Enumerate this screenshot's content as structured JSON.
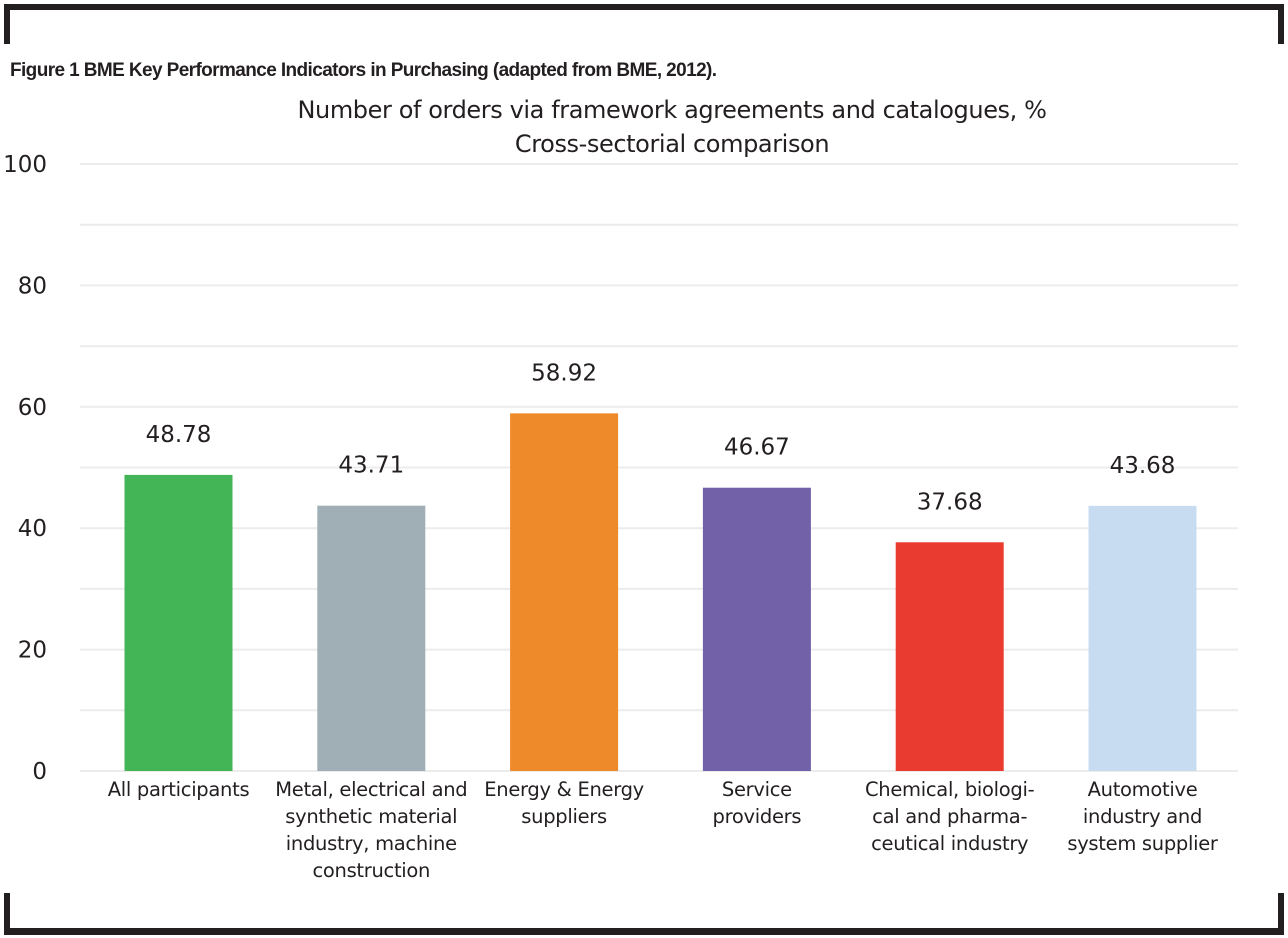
{
  "figure_caption": "Figure 1 BME Key Performance Indicators in Purchasing (adapted from BME, 2012).",
  "chart_data": {
    "type": "bar",
    "title": "Number of orders via framework agreements and catalogues, %",
    "subtitle": "Cross-sectorial comparison",
    "xlabel": "",
    "ylabel": "",
    "ylim": [
      0,
      100
    ],
    "yticks": [
      0,
      20,
      40,
      60,
      80,
      100
    ],
    "grid_step": 10,
    "grid": true,
    "legend": "none",
    "categories": [
      "All participants",
      "Metal, electrical and\nsynthetic material\nindustry, machine\nconstruction",
      "Energy & Energy\nsuppliers",
      "Service\nproviders",
      "Chemical, biologi-\ncal and pharma-\nceutical industry",
      "Automotive\nindustry and\nsystem supplier"
    ],
    "values": [
      48.78,
      43.71,
      58.92,
      46.67,
      37.68,
      43.68
    ],
    "data_labels": [
      "48.78",
      "43.71",
      "58.92",
      "46.67",
      "37.68",
      "43.68"
    ],
    "colors": [
      "#43b556",
      "#a0afb5",
      "#ee8a29",
      "#7260a8",
      "#ea3b31",
      "#c7dcf1"
    ]
  }
}
